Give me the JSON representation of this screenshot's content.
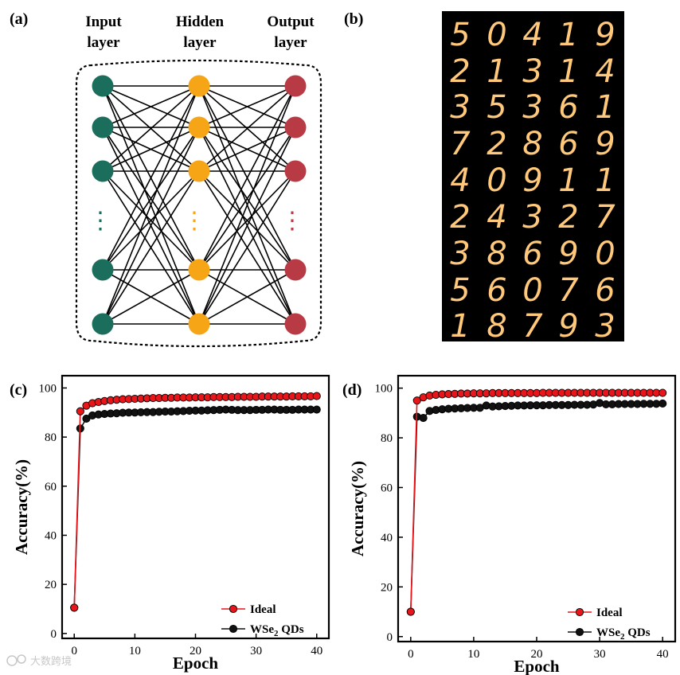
{
  "panel_labels": [
    "(a)",
    "(b)",
    "(c)",
    "(d)"
  ],
  "network": {
    "layers": [
      {
        "title_line1": "Input",
        "title_line2": "layer",
        "color": "#1c6e5c"
      },
      {
        "title_line1": "Hidden",
        "title_line2": "layer",
        "color": "#f5a516"
      },
      {
        "title_line1": "Output",
        "title_line2": "layer",
        "color": "#b83a44"
      }
    ],
    "ellipsis": "⋮"
  },
  "mnist": {
    "background": "#000000",
    "digit_color": "#ffc87a",
    "rows": [
      [
        "5",
        "0",
        "4",
        "1",
        "9"
      ],
      [
        "2",
        "1",
        "3",
        "1",
        "4"
      ],
      [
        "3",
        "5",
        "3",
        "6",
        "1"
      ],
      [
        "7",
        "2",
        "8",
        "6",
        "9"
      ],
      [
        "4",
        "0",
        "9",
        "1",
        "1"
      ],
      [
        "2",
        "4",
        "3",
        "2",
        "7"
      ],
      [
        "3",
        "8",
        "6",
        "9",
        "0"
      ],
      [
        "5",
        "6",
        "0",
        "7",
        "6"
      ],
      [
        "1",
        "8",
        "7",
        "9",
        "3"
      ]
    ]
  },
  "chart_data": [
    {
      "type": "line",
      "panel": "(c)",
      "xlabel": "Epoch",
      "ylabel": "Accuracy(%)",
      "xlim": [
        -2,
        42
      ],
      "ylim": [
        -2,
        105
      ],
      "xticks": [
        0,
        10,
        20,
        30,
        40
      ],
      "yticks": [
        0,
        20,
        40,
        60,
        80,
        100
      ],
      "legend_position": "bottom-right",
      "series": [
        {
          "name": "Ideal",
          "color": "#e8151b",
          "x": [
            0,
            1,
            2,
            3,
            4,
            5,
            6,
            7,
            8,
            9,
            10,
            11,
            12,
            13,
            14,
            15,
            16,
            17,
            18,
            19,
            20,
            21,
            22,
            23,
            24,
            25,
            26,
            27,
            28,
            29,
            30,
            31,
            32,
            33,
            34,
            35,
            36,
            37,
            38,
            39,
            40
          ],
          "values": [
            10.5,
            90.5,
            92.8,
            93.8,
            94.3,
            94.7,
            95.0,
            95.2,
            95.4,
            95.5,
            95.6,
            95.7,
            95.8,
            95.9,
            95.9,
            96.0,
            96.0,
            96.1,
            96.1,
            96.1,
            96.2,
            96.2,
            96.2,
            96.3,
            96.3,
            96.3,
            96.3,
            96.4,
            96.4,
            96.4,
            96.4,
            96.5,
            96.5,
            96.5,
            96.5,
            96.5,
            96.6,
            96.6,
            96.6,
            96.6,
            96.7
          ]
        },
        {
          "name": "WSe2 QDs",
          "name_main": "WSe",
          "name_sub": "2",
          "name_rest": " QDs",
          "color": "#111111",
          "x": [
            0,
            1,
            2,
            3,
            4,
            5,
            6,
            7,
            8,
            9,
            10,
            11,
            12,
            13,
            14,
            15,
            16,
            17,
            18,
            19,
            20,
            21,
            22,
            23,
            24,
            25,
            26,
            27,
            28,
            29,
            30,
            31,
            32,
            33,
            34,
            35,
            36,
            37,
            38,
            39,
            40
          ],
          "values": [
            10.5,
            83.5,
            87.5,
            88.8,
            89.2,
            89.4,
            89.6,
            89.7,
            89.9,
            90.0,
            90.0,
            90.1,
            90.2,
            90.2,
            90.3,
            90.4,
            90.4,
            90.5,
            90.6,
            90.7,
            90.8,
            90.8,
            90.9,
            91.0,
            91.1,
            91.2,
            91.1,
            91.0,
            91.0,
            91.0,
            91.1,
            91.1,
            91.2,
            91.2,
            91.1,
            91.1,
            91.1,
            91.2,
            91.2,
            91.2,
            91.2
          ]
        }
      ]
    },
    {
      "type": "line",
      "panel": "(d)",
      "xlabel": "Epoch",
      "ylabel": "Accuracy(%)",
      "xlim": [
        -2,
        42
      ],
      "ylim": [
        -2,
        105
      ],
      "xticks": [
        0,
        10,
        20,
        30,
        40
      ],
      "yticks": [
        0,
        20,
        40,
        60,
        80,
        100
      ],
      "legend_position": "bottom-right",
      "series": [
        {
          "name": "Ideal",
          "color": "#e8151b",
          "x": [
            0,
            1,
            2,
            3,
            4,
            5,
            6,
            7,
            8,
            9,
            10,
            11,
            12,
            13,
            14,
            15,
            16,
            17,
            18,
            19,
            20,
            21,
            22,
            23,
            24,
            25,
            26,
            27,
            28,
            29,
            30,
            31,
            32,
            33,
            34,
            35,
            36,
            37,
            38,
            39,
            40
          ],
          "values": [
            10.0,
            95.0,
            96.3,
            97.0,
            97.3,
            97.5,
            97.6,
            97.7,
            97.8,
            97.8,
            97.9,
            97.9,
            97.9,
            98.0,
            98.0,
            98.0,
            98.0,
            98.0,
            98.0,
            98.0,
            98.0,
            98.1,
            98.1,
            98.1,
            98.1,
            98.1,
            98.1,
            98.1,
            98.1,
            98.1,
            98.1,
            98.1,
            98.1,
            98.1,
            98.1,
            98.1,
            98.1,
            98.1,
            98.1,
            98.1,
            98.1
          ]
        },
        {
          "name": "WSe2 QDs",
          "name_main": "WSe",
          "name_sub": "2",
          "name_rest": " QDs",
          "color": "#111111",
          "x": [
            0,
            1,
            2,
            3,
            4,
            5,
            6,
            7,
            8,
            9,
            10,
            11,
            12,
            13,
            14,
            15,
            16,
            17,
            18,
            19,
            20,
            21,
            22,
            23,
            24,
            25,
            26,
            27,
            28,
            29,
            30,
            31,
            32,
            33,
            34,
            35,
            36,
            37,
            38,
            39,
            40
          ],
          "values": [
            10.0,
            88.5,
            88.0,
            90.8,
            91.2,
            91.5,
            91.7,
            91.8,
            91.9,
            92.0,
            92.1,
            92.1,
            93.0,
            92.6,
            92.7,
            92.8,
            92.9,
            93.0,
            93.0,
            93.1,
            93.1,
            93.1,
            93.2,
            93.2,
            93.2,
            93.2,
            93.3,
            93.3,
            93.3,
            93.4,
            94.0,
            93.5,
            93.5,
            93.6,
            93.6,
            93.6,
            93.6,
            93.7,
            93.7,
            93.7,
            93.8
          ]
        }
      ]
    }
  ],
  "watermark": "大数跨境"
}
